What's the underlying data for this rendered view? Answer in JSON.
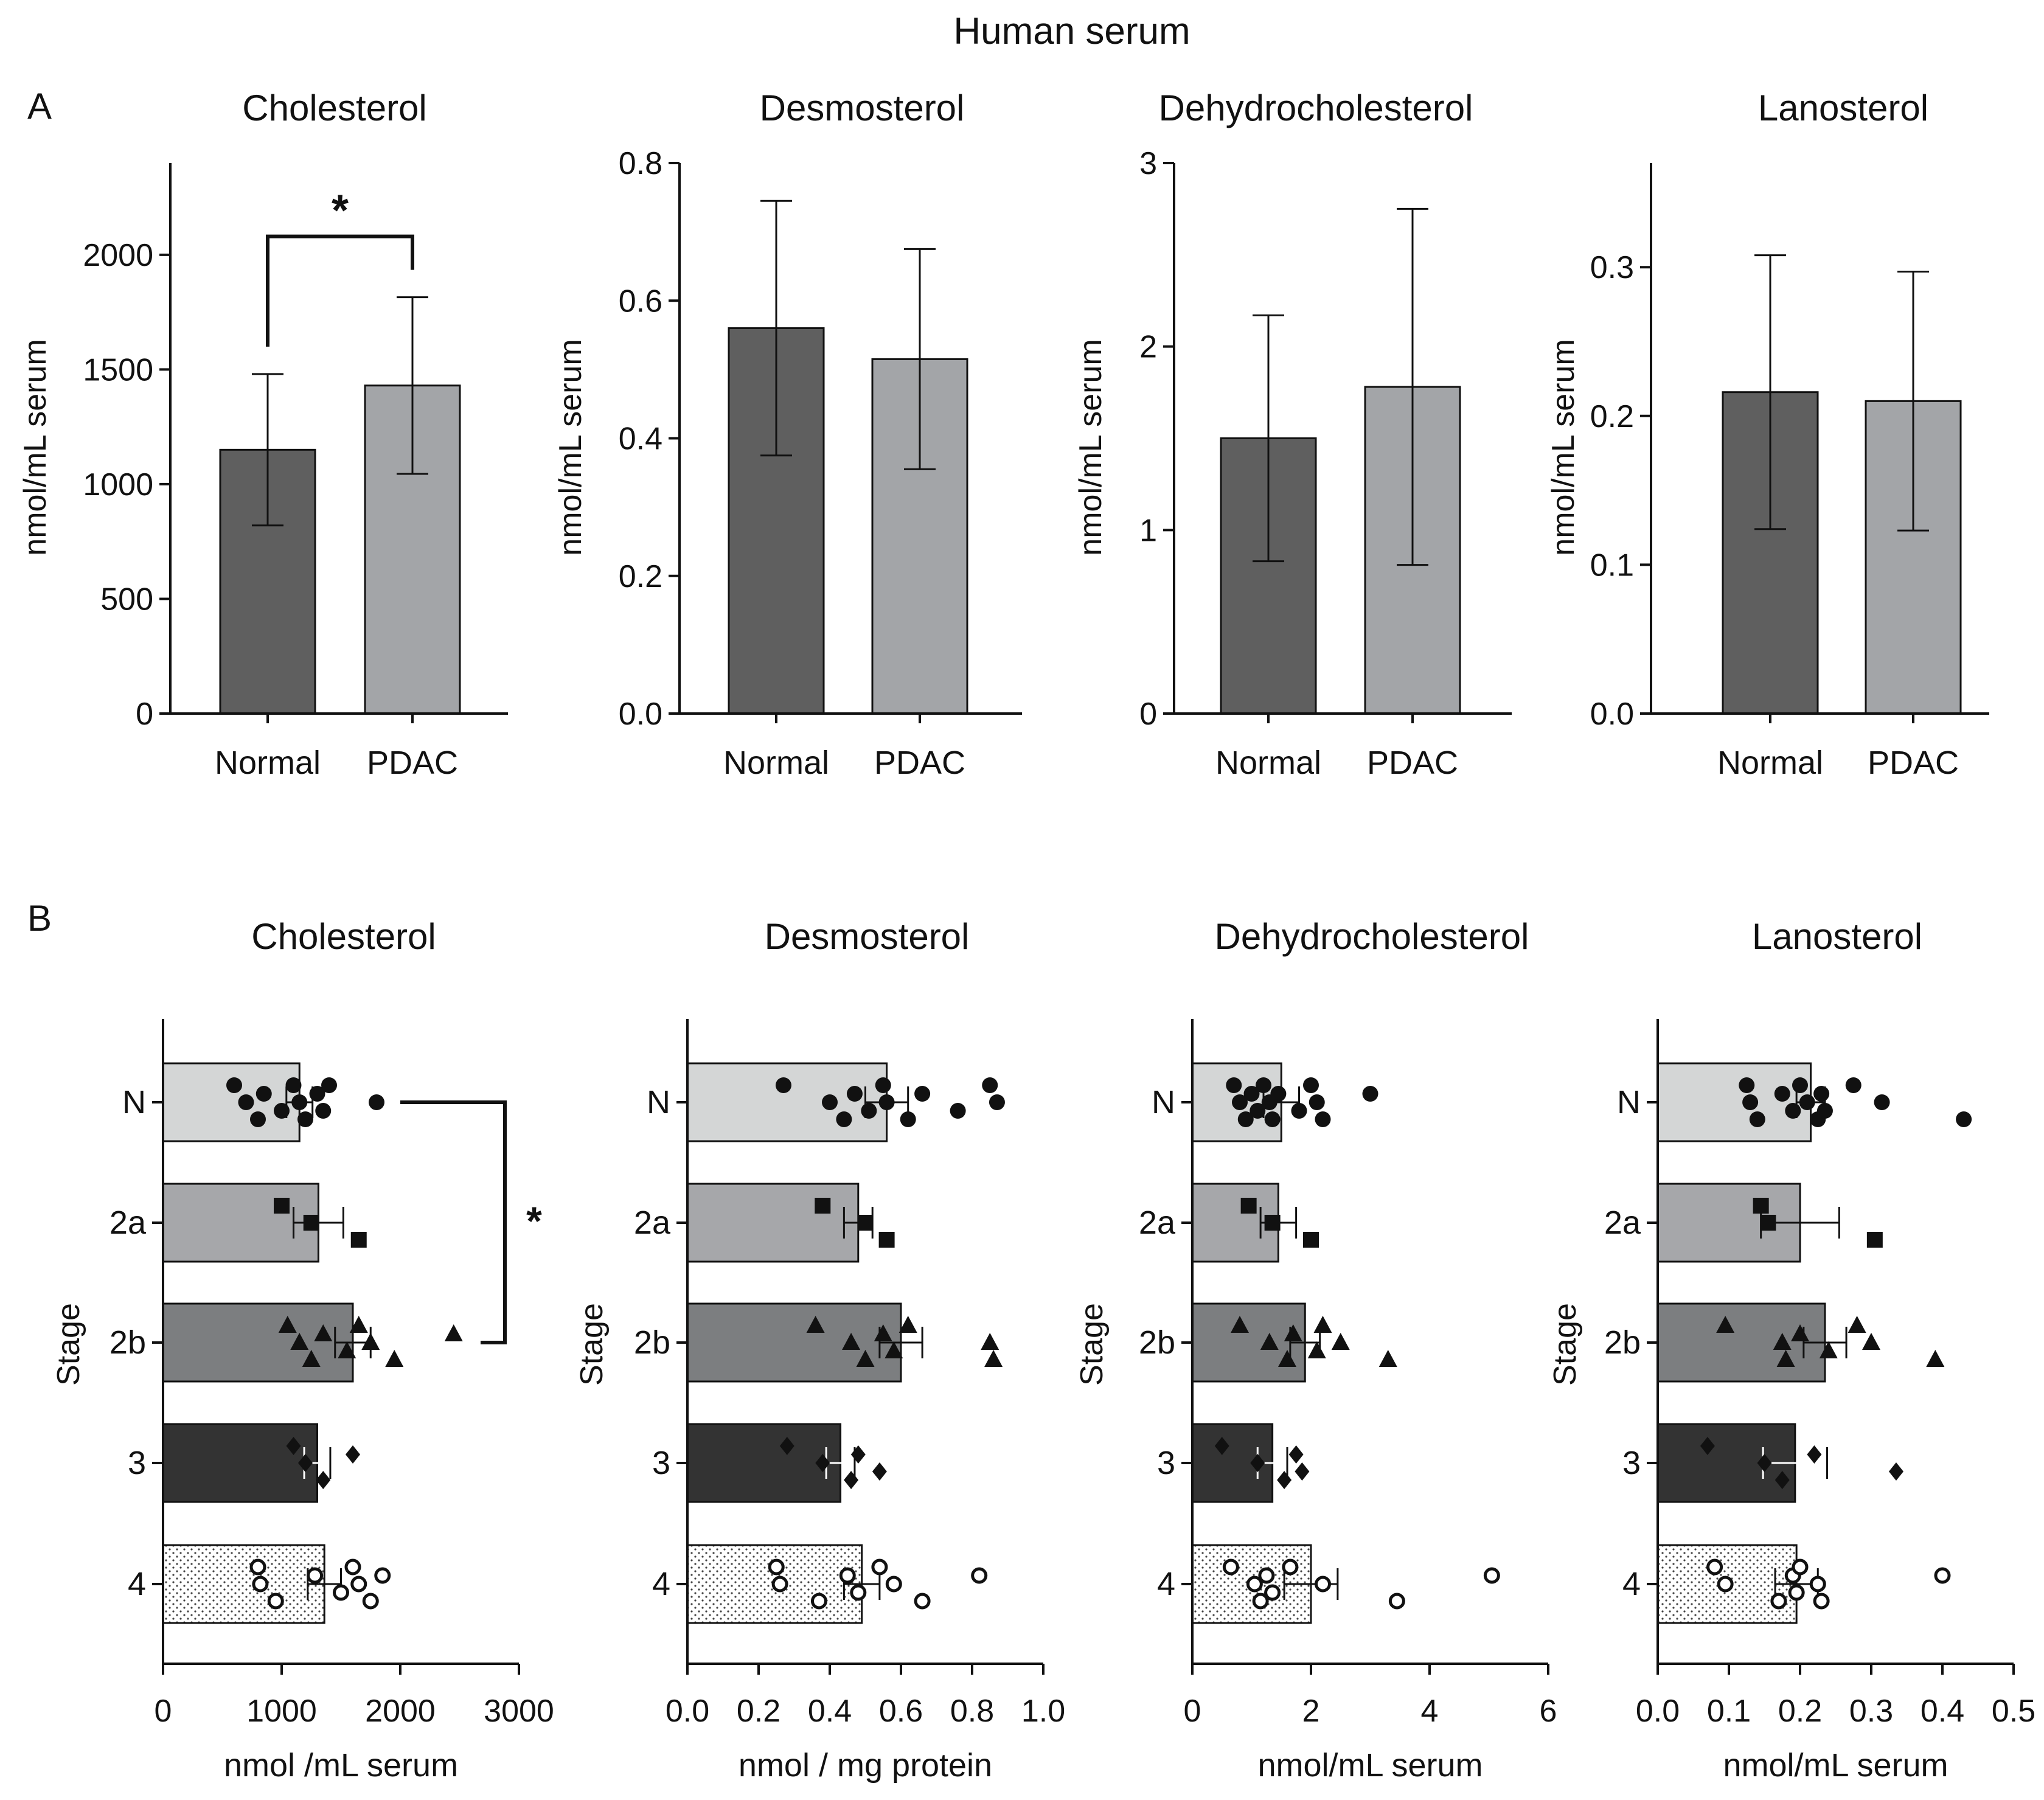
{
  "figure": {
    "title": "Human serum"
  },
  "panels": {
    "A": "A",
    "B": "B"
  },
  "colors": {
    "normal": "#5f5f5f",
    "pdac": "#a3a5a8",
    "N": "#d4d6d6",
    "2a": "#a6a7aa",
    "2b": "#7c7e80",
    "3": "#333333",
    "4": "#ffffff",
    "ink": "#111111"
  },
  "chart_data": [
    {
      "id": "A1",
      "type": "bar",
      "title": "Cholesterol",
      "orientation": "vertical",
      "ylabel": "nmol/mL serum",
      "ylim": [
        0,
        2400
      ],
      "yticks": [
        0,
        500,
        1000,
        1500,
        2000
      ],
      "ytick_labels": [
        "0",
        "500",
        "1000",
        "1500",
        "2000"
      ],
      "categories": [
        "Normal",
        "PDAC"
      ],
      "values": [
        1150,
        1430
      ],
      "error": [
        330,
        385
      ],
      "significance": {
        "between": [
          "Normal",
          "PDAC"
        ],
        "label": "*"
      }
    },
    {
      "id": "A2",
      "type": "bar",
      "title": "Desmosterol",
      "orientation": "vertical",
      "ylabel": "nmol/mL serum",
      "ylim": [
        0,
        0.8
      ],
      "yticks": [
        0,
        0.2,
        0.4,
        0.6,
        0.8
      ],
      "ytick_labels": [
        "0.0",
        "0.2",
        "0.4",
        "0.6",
        "0.8"
      ],
      "categories": [
        "Normal",
        "PDAC"
      ],
      "values": [
        0.56,
        0.515
      ],
      "error": [
        0.185,
        0.16
      ]
    },
    {
      "id": "A3",
      "type": "bar",
      "title": "Dehydrocholesterol",
      "orientation": "vertical",
      "ylabel": "nmol/mL serum",
      "ylim": [
        0,
        3
      ],
      "yticks": [
        0,
        1,
        2,
        3
      ],
      "ytick_labels": [
        "0",
        "1",
        "2",
        "3"
      ],
      "categories": [
        "Normal",
        "PDAC"
      ],
      "values": [
        1.5,
        1.78
      ],
      "error": [
        0.67,
        0.97
      ]
    },
    {
      "id": "A4",
      "type": "bar",
      "title": "Lanosterol",
      "orientation": "vertical",
      "ylabel": "nmol/mL serum",
      "ylim": [
        0,
        0.37
      ],
      "yticks": [
        0,
        0.1,
        0.2,
        0.3
      ],
      "ytick_labels": [
        "0.0",
        "0.1",
        "0.2",
        "0.3"
      ],
      "categories": [
        "Normal",
        "PDAC"
      ],
      "values": [
        0.216,
        0.21
      ],
      "error": [
        0.092,
        0.087
      ]
    },
    {
      "id": "B1",
      "type": "bar",
      "title": "Cholesterol",
      "orientation": "horizontal",
      "xlabel": "nmol /mL serum",
      "ylabel": "Stage",
      "xlim": [
        0,
        3000
      ],
      "xticks": [
        0,
        1000,
        2000,
        3000
      ],
      "xtick_labels": [
        "0",
        "1000",
        "2000",
        "3000"
      ],
      "categories": [
        "N",
        "2a",
        "2b",
        "3",
        "4"
      ],
      "values": [
        1150,
        1310,
        1600,
        1300,
        1360
      ],
      "error": [
        110,
        210,
        150,
        110,
        140
      ],
      "points": [
        [
          600,
          700,
          800,
          850,
          1000,
          1100,
          1150,
          1200,
          1300,
          1350,
          1400,
          1800
        ],
        [
          1000,
          1250,
          1650
        ],
        [
          1050,
          1150,
          1250,
          1350,
          1550,
          1650,
          1750,
          1950,
          2450
        ],
        [
          1100,
          1200,
          1350,
          1600
        ],
        [
          800,
          820,
          950,
          1280,
          1500,
          1600,
          1650,
          1750,
          1850
        ]
      ],
      "significance": {
        "between": [
          "N",
          "2b"
        ],
        "label": "*"
      }
    },
    {
      "id": "B2",
      "type": "bar",
      "title": "Desmosterol",
      "orientation": "horizontal",
      "xlabel": "nmol / mg protein",
      "ylabel": "Stage",
      "xlim": [
        0,
        1
      ],
      "xticks": [
        0,
        0.2,
        0.4,
        0.6,
        0.8,
        1.0
      ],
      "xtick_labels": [
        "0.0",
        "0.2",
        "0.4",
        "0.6",
        "0.8",
        "1.0"
      ],
      "categories": [
        "N",
        "2a",
        "2b",
        "3",
        "4"
      ],
      "values": [
        0.56,
        0.48,
        0.6,
        0.43,
        0.49
      ],
      "error": [
        0.06,
        0.04,
        0.06,
        0.04,
        0.05
      ],
      "points": [
        [
          0.27,
          0.4,
          0.44,
          0.47,
          0.51,
          0.55,
          0.56,
          0.62,
          0.66,
          0.76,
          0.85,
          0.87
        ],
        [
          0.38,
          0.5,
          0.56
        ],
        [
          0.36,
          0.46,
          0.5,
          0.55,
          0.58,
          0.62,
          0.85,
          0.86
        ],
        [
          0.28,
          0.38,
          0.46,
          0.48,
          0.54
        ],
        [
          0.25,
          0.26,
          0.37,
          0.45,
          0.48,
          0.54,
          0.58,
          0.66,
          0.82
        ]
      ]
    },
    {
      "id": "B3",
      "type": "bar",
      "title": "Dehydrocholesterol",
      "orientation": "horizontal",
      "xlabel": "nmol/mL serum",
      "ylabel": "Stage",
      "xlim": [
        0,
        6
      ],
      "xticks": [
        0,
        2,
        4,
        6
      ],
      "xtick_labels": [
        "0",
        "2",
        "4",
        "6"
      ],
      "categories": [
        "N",
        "2a",
        "2b",
        "3",
        "4"
      ],
      "values": [
        1.5,
        1.45,
        1.9,
        1.35,
        2.0
      ],
      "error": [
        0.3,
        0.3,
        0.25,
        0.25,
        0.45
      ],
      "points": [
        [
          0.7,
          0.8,
          0.9,
          1.0,
          1.1,
          1.2,
          1.3,
          1.35,
          1.45,
          1.8,
          2.0,
          2.1,
          2.2,
          3.0
        ],
        [
          0.95,
          1.35,
          2.0
        ],
        [
          0.8,
          1.3,
          1.6,
          1.7,
          2.1,
          2.2,
          2.5,
          3.3
        ],
        [
          0.5,
          1.1,
          1.55,
          1.75,
          1.85
        ],
        [
          0.65,
          1.05,
          1.15,
          1.25,
          1.35,
          1.65,
          2.2,
          3.45,
          5.05
        ]
      ]
    },
    {
      "id": "B4",
      "type": "bar",
      "title": "Lanosterol",
      "orientation": "horizontal",
      "xlabel": "nmol/mL serum",
      "ylabel": "Stage",
      "xlim": [
        0,
        0.5
      ],
      "xticks": [
        0,
        0.1,
        0.2,
        0.3,
        0.4,
        0.5
      ],
      "xtick_labels": [
        "0.0",
        "0.1",
        "0.2",
        "0.3",
        "0.4",
        "0.5"
      ],
      "categories": [
        "N",
        "2a",
        "2b",
        "3",
        "4"
      ],
      "values": [
        0.215,
        0.2,
        0.235,
        0.193,
        0.195
      ],
      "error": [
        0.02,
        0.055,
        0.03,
        0.045,
        0.03
      ],
      "points": [
        [
          0.125,
          0.13,
          0.14,
          0.175,
          0.19,
          0.2,
          0.21,
          0.225,
          0.23,
          0.235,
          0.275,
          0.315,
          0.43
        ],
        [
          0.145,
          0.155,
          0.305
        ],
        [
          0.095,
          0.175,
          0.18,
          0.2,
          0.24,
          0.28,
          0.3,
          0.39
        ],
        [
          0.07,
          0.15,
          0.175,
          0.22,
          0.335
        ],
        [
          0.08,
          0.095,
          0.17,
          0.19,
          0.195,
          0.2,
          0.225,
          0.23,
          0.4
        ]
      ]
    }
  ]
}
